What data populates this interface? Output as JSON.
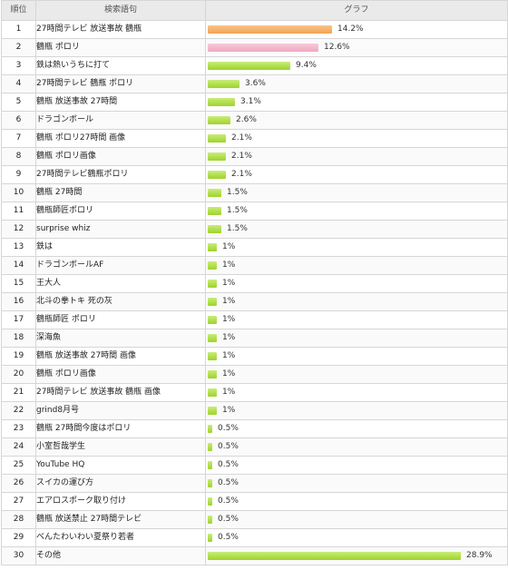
{
  "header": {
    "rank": "順位",
    "term": "検索語句",
    "graph": "グラフ"
  },
  "chart_data": {
    "type": "bar",
    "orientation": "horizontal",
    "xlabel": "",
    "ylabel": "",
    "categories": [
      "27時間テレビ 放送事故 鶴瓶",
      "鶴瓶 ポロリ",
      "鉄は熱いうちに打て",
      "27時間テレビ 鶴瓶 ポロリ",
      "鶴瓶 放送事故 27時間",
      "ドラゴンボール",
      "鶴瓶 ポロリ27時間 画像",
      "鶴瓶 ポロリ画像",
      "27時間テレビ鶴瓶ポロリ",
      "鶴瓶 27時間",
      "鶴瓶師匠ポロリ",
      "surprise whiz",
      "鉄は",
      "ドラゴンボールAF",
      "王大人",
      "北斗の拳トキ 死の灰",
      "鶴瓶師匠 ポロリ",
      "深海魚",
      "鶴瓶 放送事故 27時間 画像",
      "鶴瓶 ポロリ画像",
      "27時間テレビ 放送事故 鶴瓶 画像",
      "grind8月号",
      "鶴瓶 27時間今度はポロリ",
      "小室哲哉学生",
      "YouTube HQ",
      "スイカの運び方",
      "エアロスポーク取り付け",
      "鶴瓶 放送禁止 27時間テレビ",
      "べんたわいわい夏祭り若者",
      "その他"
    ],
    "series": [
      {
        "values": [
          14.2,
          12.6,
          9.4,
          3.6,
          3.1,
          2.6,
          2.1,
          2.1,
          2.1,
          1.5,
          1.5,
          1.5,
          1,
          1,
          1,
          1,
          1,
          1,
          1,
          1,
          1,
          1,
          0.5,
          0.5,
          0.5,
          0.5,
          0.5,
          0.5,
          0.5,
          28.9
        ]
      }
    ],
    "labels": [
      "14.2%",
      "12.6%",
      "9.4%",
      "3.6%",
      "3.1%",
      "2.6%",
      "2.1%",
      "2.1%",
      "2.1%",
      "1.5%",
      "1.5%",
      "1.5%",
      "1%",
      "1%",
      "1%",
      "1%",
      "1%",
      "1%",
      "1%",
      "1%",
      "1%",
      "1%",
      "0.5%",
      "0.5%",
      "0.5%",
      "0.5%",
      "0.5%",
      "0.5%",
      "0.5%",
      "28.9%"
    ],
    "bar_colors": {
      "1": "#f4a250",
      "2": "#f0a8c0",
      "default": "#a6d633"
    },
    "xlim": [
      0,
      30
    ]
  },
  "rows": [
    {
      "rank": "1"
    },
    {
      "rank": "2"
    },
    {
      "rank": "3"
    },
    {
      "rank": "4"
    },
    {
      "rank": "5"
    },
    {
      "rank": "6"
    },
    {
      "rank": "7"
    },
    {
      "rank": "8"
    },
    {
      "rank": "9"
    },
    {
      "rank": "10"
    },
    {
      "rank": "11"
    },
    {
      "rank": "12"
    },
    {
      "rank": "13"
    },
    {
      "rank": "14"
    },
    {
      "rank": "15"
    },
    {
      "rank": "16"
    },
    {
      "rank": "17"
    },
    {
      "rank": "18"
    },
    {
      "rank": "19"
    },
    {
      "rank": "20"
    },
    {
      "rank": "21"
    },
    {
      "rank": "22"
    },
    {
      "rank": "23"
    },
    {
      "rank": "24"
    },
    {
      "rank": "25"
    },
    {
      "rank": "26"
    },
    {
      "rank": "27"
    },
    {
      "rank": "28"
    },
    {
      "rank": "29"
    },
    {
      "rank": "30"
    }
  ]
}
